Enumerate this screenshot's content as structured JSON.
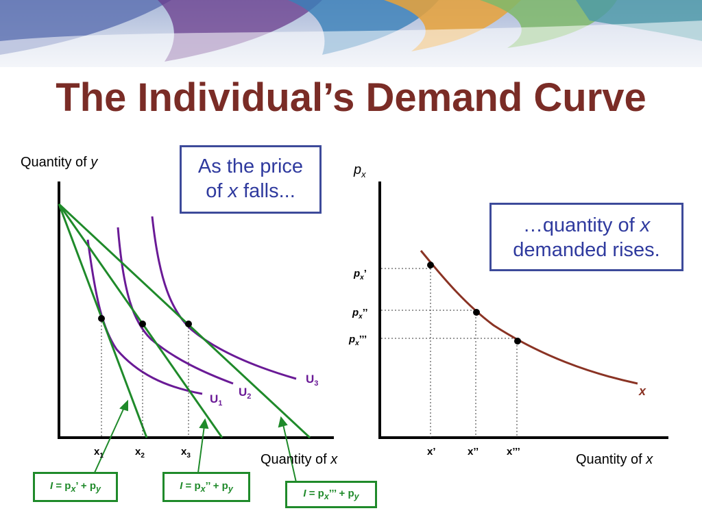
{
  "title": "The Individual’s Demand Curve",
  "left_panel": {
    "y_axis_label": "Quantity of ",
    "y_axis_var": "y",
    "x_axis_label": "Quantity of ",
    "x_axis_var": "x",
    "callout_line1": "As the price",
    "callout_line2_pre": "of ",
    "callout_line2_var": "x",
    "callout_line2_post": " falls...",
    "x_ticks": [
      {
        "base": "x",
        "sub": "1"
      },
      {
        "base": "x",
        "sub": "2"
      },
      {
        "base": "x",
        "sub": "3"
      }
    ],
    "curves": [
      {
        "base": "U",
        "sub": "1"
      },
      {
        "base": "U",
        "sub": "2"
      },
      {
        "base": "U",
        "sub": "3"
      }
    ],
    "budget_lines": [
      {
        "pre": "I",
        "mid": " = p",
        "sub": "x",
        "prime": "’",
        "post": " + p",
        "sub2": "y"
      },
      {
        "pre": "I",
        "mid": " = p",
        "sub": "x",
        "prime": "’’",
        "post": " + p",
        "sub2": "y"
      },
      {
        "pre": "I",
        "mid": " = p",
        "sub": "x",
        "prime": "’’’",
        "post": " + p",
        "sub2": "y"
      }
    ]
  },
  "right_panel": {
    "y_axis_base": "p",
    "y_axis_sub": "x",
    "x_axis_label": "Quantity of ",
    "x_axis_var": "x",
    "callout_line1_pre": "…quantity of ",
    "callout_line1_var": "x",
    "callout_line2": "demanded rises.",
    "price_ticks": [
      {
        "base": "p",
        "sub": "x",
        "prime": "’"
      },
      {
        "base": "p",
        "sub": "x",
        "prime": "’’"
      },
      {
        "base": "p",
        "sub": "x",
        "prime": "’’’"
      }
    ],
    "quantity_ticks": [
      "x’",
      "x’’",
      "x’’’"
    ],
    "curve_label": "x"
  },
  "colors": {
    "title": "#7a2c26",
    "indifference": "#6a1a96",
    "budget": "#1f8a2a",
    "demand": "#8a3324",
    "callout_border": "#3d4a9a",
    "callout_text": "#2f3a9e"
  },
  "icons": [
    "decorative-banner"
  ]
}
